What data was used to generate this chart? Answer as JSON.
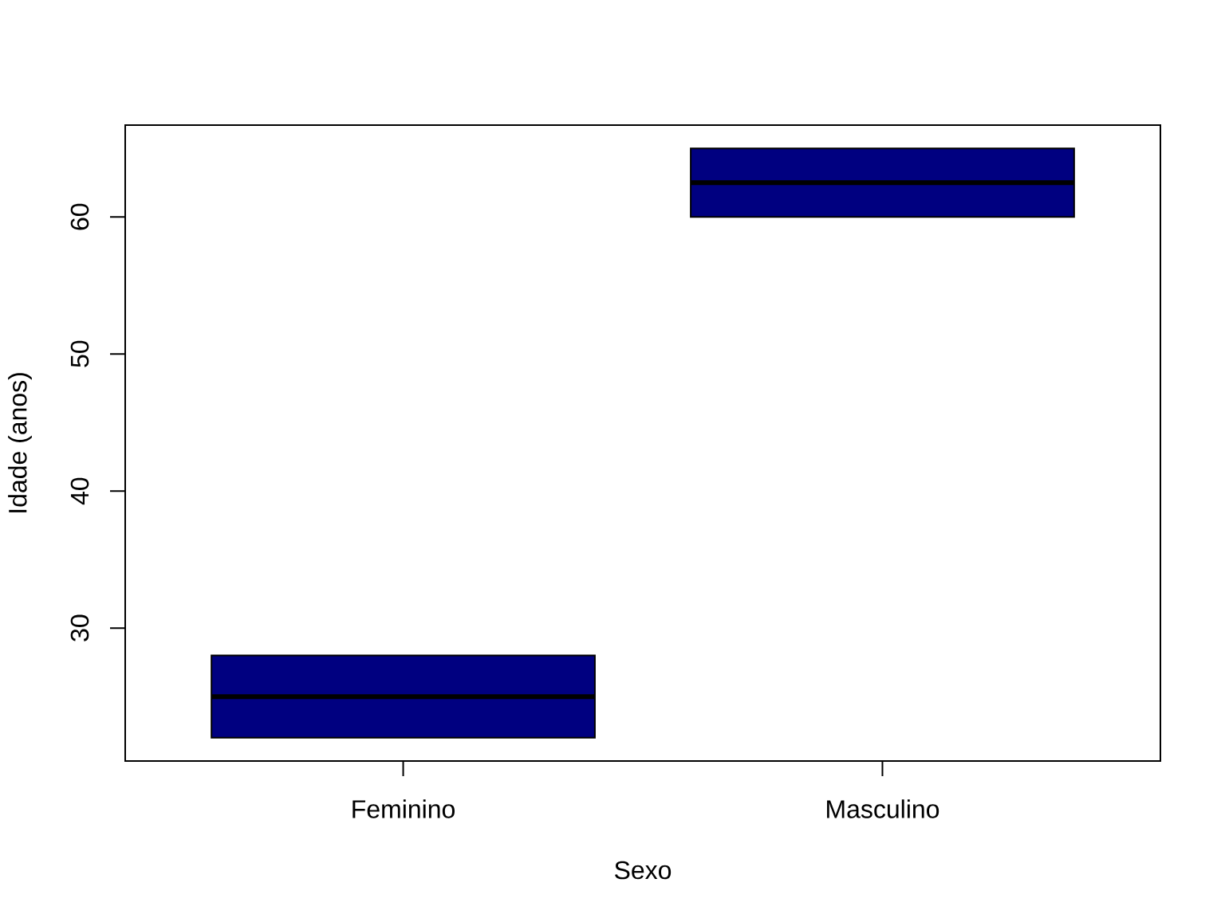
{
  "chart_data": {
    "type": "box",
    "xlabel": "Sexo",
    "ylabel": "Idade (anos)",
    "categories": [
      "Feminino",
      "Masculino"
    ],
    "boxes": [
      {
        "low": 22,
        "q1": 22,
        "median": 25,
        "q3": 28,
        "high": 28
      },
      {
        "low": 60,
        "q1": 60,
        "median": 62.5,
        "q3": 65,
        "high": 65
      }
    ],
    "color": "#000080",
    "ylim": [
      20.3,
      66.7
    ],
    "yticks": [
      30,
      40,
      50,
      60
    ]
  }
}
